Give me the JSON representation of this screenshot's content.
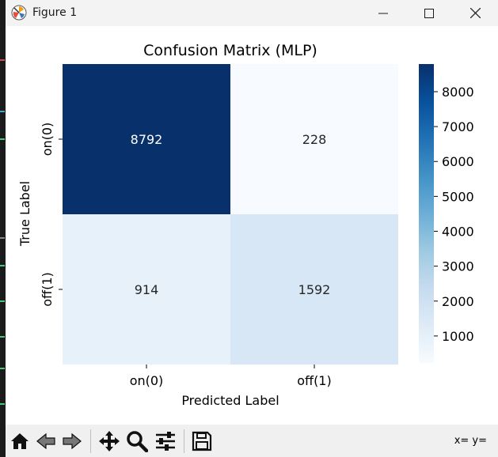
{
  "window": {
    "title": "Figure 1"
  },
  "toolbar": {
    "coords": "x= y="
  },
  "chart_data": {
    "type": "heatmap",
    "title": "Confusion Matrix (MLP)",
    "xlabel": "Predicted Label",
    "ylabel": "True Label",
    "x_categories": [
      "on(0)",
      "off(1)"
    ],
    "y_categories": [
      "on(0)",
      "off(1)"
    ],
    "values": [
      [
        8792,
        228
      ],
      [
        914,
        1592
      ]
    ],
    "colormap": "Blues",
    "colorbar": {
      "min": 228,
      "max": 8792,
      "ticks": [
        1000,
        2000,
        3000,
        4000,
        5000,
        6000,
        7000,
        8000
      ]
    }
  }
}
